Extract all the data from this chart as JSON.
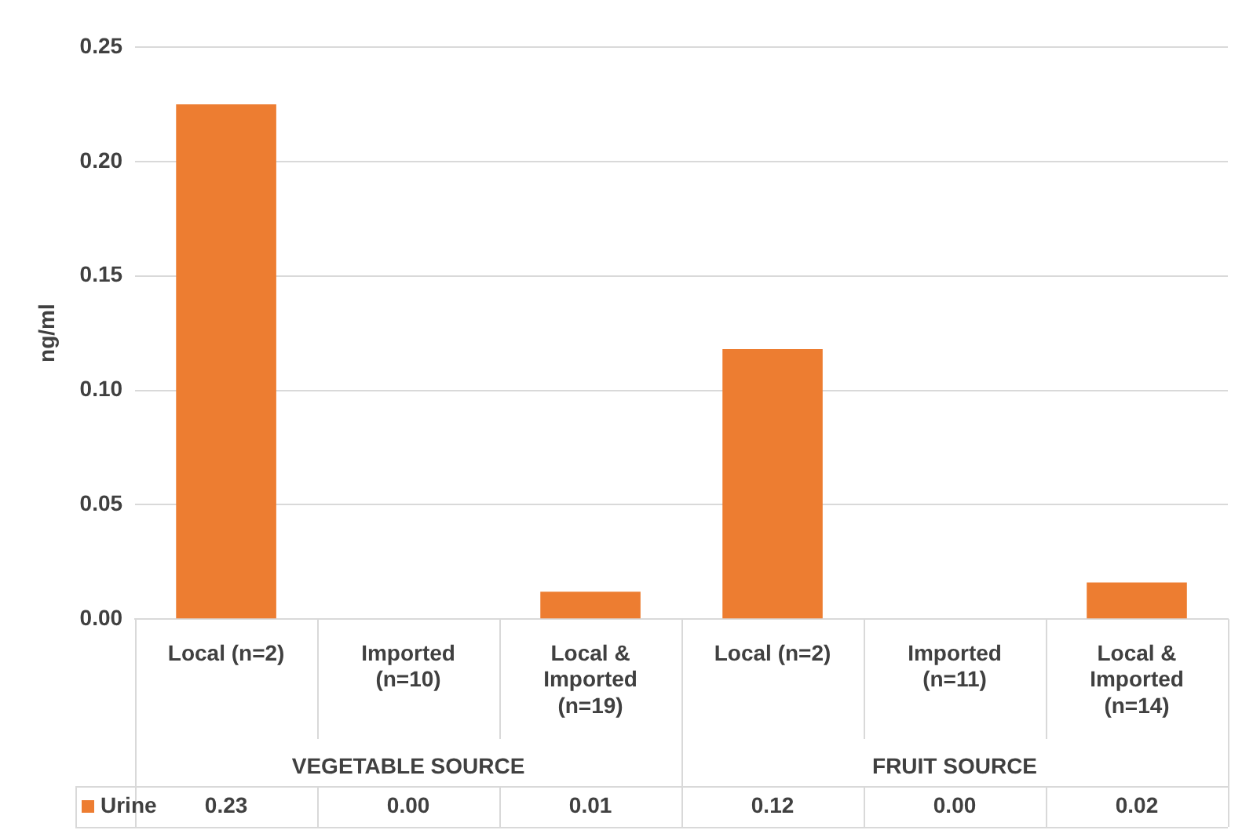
{
  "chart_data": {
    "type": "bar",
    "ylabel": "ng/ml",
    "categories": [
      "Local (n=2)",
      "Imported (n=10)",
      "Local & Imported (n=19)",
      "Local (n=2)",
      "Imported (n=11)",
      "Local & Imported (n=14)"
    ],
    "series": [
      {
        "name": "Urine",
        "color": "#ed7d31",
        "values": [
          0.225,
          0,
          0.012,
          0.118,
          0,
          0.016
        ],
        "value_labels": [
          "0.23",
          "0.00",
          "0.01",
          "0.12",
          "0.00",
          "0.02"
        ]
      }
    ],
    "annotations": [
      "VEGETABLE SOURCE",
      "FRUIT SOURCE"
    ],
    "ylim": [
      0,
      0.25
    ],
    "yticks": [
      {
        "value": 0,
        "label": "0.00"
      },
      {
        "value": 0.05,
        "label": "0.05"
      },
      {
        "value": 0.1,
        "label": "0.10"
      },
      {
        "value": 0.15,
        "label": "0.15"
      },
      {
        "value": 0.2,
        "label": "0.20"
      },
      {
        "value": 0.25,
        "label": "0.25"
      }
    ],
    "grid": "y",
    "legend": "bottom"
  }
}
